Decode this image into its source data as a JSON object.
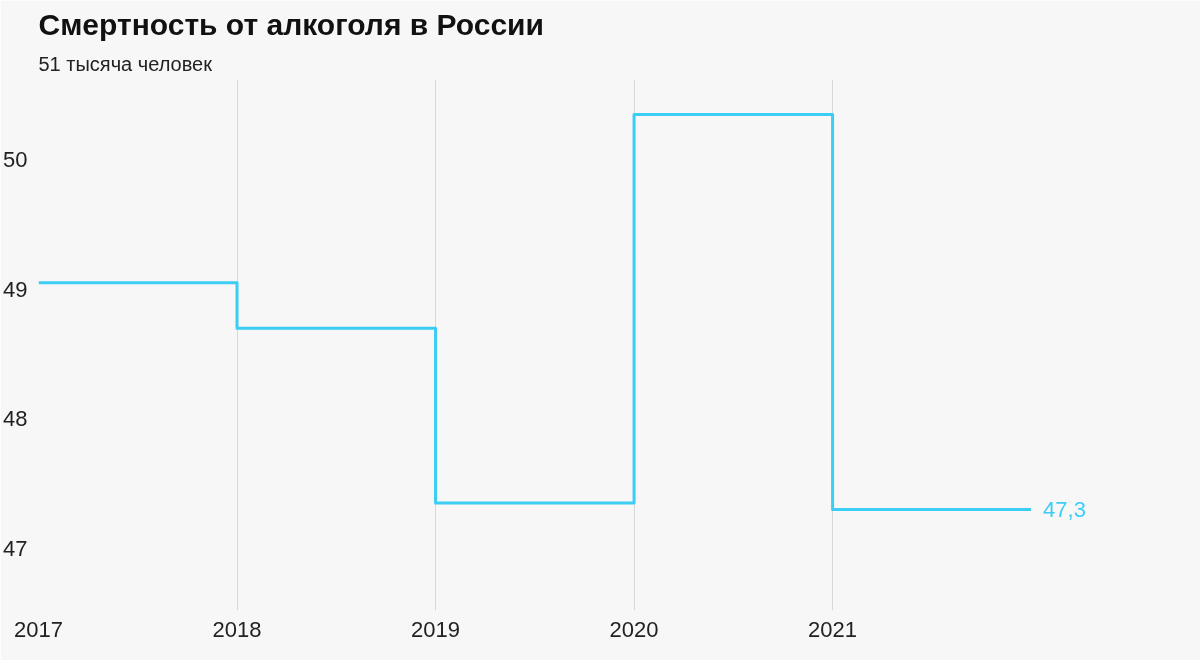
{
  "chart_data": {
    "type": "step",
    "title": "Смертность от алкоголя в России",
    "subtitle": "51 тысяча человек",
    "x": [
      2017,
      2018,
      2019,
      2020,
      2021,
      2022
    ],
    "series": [
      {
        "color": "#3ccdf5",
        "values": [
          49.05,
          48.7,
          47.35,
          50.35,
          47.3,
          47.3
        ],
        "value_labels": [
          null,
          null,
          null,
          null,
          null,
          "47,3"
        ]
      }
    ],
    "xlim": [
      2017,
      2022.4
    ],
    "xticks": [
      2017,
      2018,
      2019,
      2020,
      2021
    ],
    "ylim": [
      46.52,
      50.62
    ],
    "yticks": [
      47,
      48,
      49,
      50
    ],
    "grid": "x"
  }
}
